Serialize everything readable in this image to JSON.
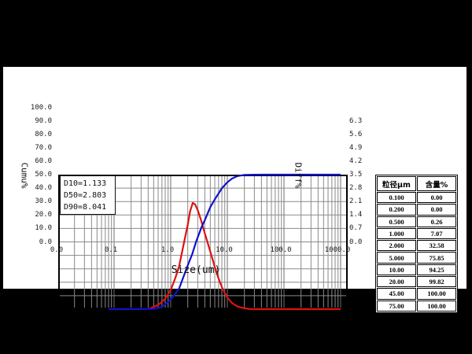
{
  "window": {
    "background": "#000000",
    "panel_background": "#ffffff"
  },
  "chart": {
    "ylabel_left": "Cumu%",
    "ylabel_right": "Diff%",
    "xlabel": "Size(um)",
    "annotation": {
      "line1": "D10=1.133",
      "line2": "D50=2.803",
      "line3": "D90=8.041"
    },
    "x_ticks": [
      {
        "label": "0.0",
        "um": 0
      },
      {
        "label": "0.1",
        "um": 0.1
      },
      {
        "label": "1.0",
        "um": 1
      },
      {
        "label": "10.0",
        "um": 10
      },
      {
        "label": "100.0",
        "um": 100
      },
      {
        "label": "1000.0",
        "um": 1000
      }
    ],
    "y_left_ticks": [
      {
        "label": "100.0",
        "at": 100
      },
      {
        "label": "90.0",
        "at": 90
      },
      {
        "label": "80.0",
        "at": 80
      },
      {
        "label": "70.0",
        "at": 70
      },
      {
        "label": "60.0",
        "at": 60
      },
      {
        "label": "50.0",
        "at": 50
      },
      {
        "label": "40.0",
        "at": 40
      },
      {
        "label": "30.0",
        "at": 30
      },
      {
        "label": "20.0",
        "at": 20
      },
      {
        "label": "10.0",
        "at": 10
      },
      {
        "label": "0.0",
        "at": 0
      }
    ],
    "y_right_ticks": [
      {
        "label": "6.3",
        "at": 90
      },
      {
        "label": "5.6",
        "at": 80
      },
      {
        "label": "4.9",
        "at": 70
      },
      {
        "label": "4.2",
        "at": 60
      },
      {
        "label": "3.5",
        "at": 50
      },
      {
        "label": "2.8",
        "at": 40
      },
      {
        "label": "2.1",
        "at": 30
      },
      {
        "label": "1.4",
        "at": 20
      },
      {
        "label": "0.7",
        "at": 10
      },
      {
        "label": "0.0",
        "at": 0
      }
    ],
    "colors": {
      "cumulative": "#1111cc",
      "differential": "#dd1111",
      "grid_minor": "#8a8a8a",
      "grid_major": "#6e6e6e",
      "frame": "#000000"
    }
  },
  "chart_data": {
    "type": "line",
    "title": "",
    "xlabel": "Size(um)",
    "x_scale": "log",
    "x_range_um": [
      0.1,
      1000
    ],
    "y_left_label": "Cumu%",
    "y_left_range": [
      0,
      100
    ],
    "y_right_label": "Diff%",
    "y_right_range": [
      0,
      7
    ],
    "grid": true,
    "d_values": {
      "D10": 1.133,
      "D50": 2.803,
      "D90": 8.041
    },
    "series": [
      {
        "name": "Cumu%",
        "axis": "left",
        "color": "#1111cc",
        "points": [
          [
            0.08,
            0
          ],
          [
            0.1,
            0
          ],
          [
            0.2,
            0
          ],
          [
            0.3,
            0.05
          ],
          [
            0.5,
            0.26
          ],
          [
            0.7,
            1.5
          ],
          [
            1.0,
            7.07
          ],
          [
            1.4,
            15
          ],
          [
            2.0,
            32.58
          ],
          [
            2.4,
            41
          ],
          [
            2.803,
            50
          ],
          [
            3.5,
            61
          ],
          [
            4.0,
            66
          ],
          [
            5.0,
            75.85
          ],
          [
            6.0,
            81.5
          ],
          [
            7.0,
            86
          ],
          [
            8.041,
            90
          ],
          [
            10,
            94.25
          ],
          [
            12,
            97
          ],
          [
            15,
            98.9
          ],
          [
            20,
            99.82
          ],
          [
            30,
            99.97
          ],
          [
            45,
            100
          ],
          [
            75,
            100
          ],
          [
            1000,
            100
          ]
        ]
      },
      {
        "name": "Diff%",
        "axis": "right",
        "color": "#dd1111",
        "points": [
          [
            0.4,
            0
          ],
          [
            0.5,
            0.12
          ],
          [
            0.6,
            0.22
          ],
          [
            0.7,
            0.38
          ],
          [
            0.8,
            0.55
          ],
          [
            1.0,
            1.0
          ],
          [
            1.2,
            1.6
          ],
          [
            1.4,
            2.2
          ],
          [
            1.7,
            3.4
          ],
          [
            2.0,
            4.4
          ],
          [
            2.2,
            5.1
          ],
          [
            2.45,
            5.53
          ],
          [
            2.7,
            5.45
          ],
          [
            3.0,
            5.15
          ],
          [
            3.5,
            4.55
          ],
          [
            4.0,
            3.95
          ],
          [
            4.5,
            3.45
          ],
          [
            5.0,
            3.0
          ],
          [
            6.0,
            2.2
          ],
          [
            7.0,
            1.6
          ],
          [
            8.0,
            1.15
          ],
          [
            9.0,
            0.85
          ],
          [
            10,
            0.6
          ],
          [
            12,
            0.33
          ],
          [
            15,
            0.14
          ],
          [
            20,
            0.04
          ],
          [
            25,
            0.01
          ],
          [
            30,
            0
          ],
          [
            1000,
            0
          ]
        ]
      }
    ]
  },
  "table": {
    "headers": [
      "粒径μm",
      "含量%"
    ],
    "rows": [
      [
        "0.100",
        "0.00"
      ],
      [
        "0.200",
        "0.00"
      ],
      [
        "0.500",
        "0.26"
      ],
      [
        "1.000",
        "7.07"
      ],
      [
        "2.000",
        "32.58"
      ],
      [
        "5.000",
        "75.85"
      ],
      [
        "10.00",
        "94.25"
      ],
      [
        "20.00",
        "99.82"
      ],
      [
        "45.00",
        "100.00"
      ],
      [
        "75.00",
        "100.00"
      ]
    ]
  }
}
